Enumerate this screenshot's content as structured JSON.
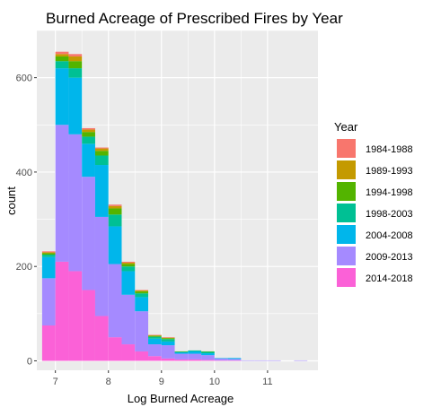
{
  "chart_data": {
    "type": "bar",
    "subtype": "stacked-histogram",
    "title": "Burned Acreage of Prescribed Fires by Year",
    "xlabel": "Log Burned Acreage",
    "ylabel": "count",
    "xlim": [
      6.65,
      11.95
    ],
    "ylim": [
      -20,
      700
    ],
    "x_ticks": [
      7,
      8,
      9,
      10,
      11
    ],
    "y_ticks": [
      0,
      200,
      400,
      600
    ],
    "bin_width": 0.25,
    "grid": true,
    "legend_title": "Year",
    "legend_position": "right",
    "series": [
      {
        "name": "1984-1988",
        "color": "#F8766D"
      },
      {
        "name": "1989-1993",
        "color": "#C49A00"
      },
      {
        "name": "1994-1998",
        "color": "#53B400"
      },
      {
        "name": "1998-2003",
        "color": "#00C094"
      },
      {
        "name": "2004-2008",
        "color": "#00B6EB"
      },
      {
        "name": "2009-2013",
        "color": "#A58AFF"
      },
      {
        "name": "2014-2018",
        "color": "#FB61D7"
      }
    ],
    "bins": [
      {
        "x": 6.875,
        "counts": {
          "2014-2018": 75,
          "2009-2013": 100,
          "2004-2008": 45,
          "1998-2003": 5,
          "1994-1998": 3,
          "1989-1993": 2,
          "1984-1988": 2
        }
      },
      {
        "x": 7.125,
        "counts": {
          "2014-2018": 210,
          "2009-2013": 290,
          "2004-2008": 120,
          "1998-2003": 15,
          "1994-1998": 10,
          "1989-1993": 5,
          "1984-1988": 5
        }
      },
      {
        "x": 7.375,
        "counts": {
          "2014-2018": 190,
          "2009-2013": 290,
          "2004-2008": 120,
          "1998-2003": 20,
          "1994-1998": 15,
          "1989-1993": 10,
          "1984-1988": 5
        }
      },
      {
        "x": 7.625,
        "counts": {
          "2014-2018": 150,
          "2009-2013": 240,
          "2004-2008": 70,
          "1998-2003": 15,
          "1994-1998": 10,
          "1989-1993": 5,
          "1984-1988": 3
        }
      },
      {
        "x": 7.875,
        "counts": {
          "2014-2018": 95,
          "2009-2013": 210,
          "2004-2008": 110,
          "1998-2003": 20,
          "1994-1998": 10,
          "1989-1993": 5,
          "1984-1988": 2
        }
      },
      {
        "x": 8.125,
        "counts": {
          "2014-2018": 50,
          "2009-2013": 155,
          "2004-2008": 80,
          "1998-2003": 25,
          "1994-1998": 13,
          "1989-1993": 5,
          "1984-1988": 3
        }
      },
      {
        "x": 8.375,
        "counts": {
          "2014-2018": 35,
          "2009-2013": 105,
          "2004-2008": 50,
          "1998-2003": 10,
          "1994-1998": 5,
          "1989-1993": 3,
          "1984-1988": 2
        }
      },
      {
        "x": 8.625,
        "counts": {
          "2014-2018": 20,
          "2009-2013": 85,
          "2004-2008": 30,
          "1998-2003": 8,
          "1994-1998": 4,
          "1989-1993": 2,
          "1984-1988": 1
        }
      },
      {
        "x": 8.875,
        "counts": {
          "2014-2018": 10,
          "2009-2013": 25,
          "2004-2008": 12,
          "1998-2003": 4,
          "1994-1998": 2,
          "1989-1993": 1,
          "1984-1988": 1
        }
      },
      {
        "x": 9.125,
        "counts": {
          "2014-2018": 5,
          "2009-2013": 28,
          "2004-2008": 8,
          "1998-2003": 5,
          "1994-1998": 2,
          "1989-1993": 1,
          "1984-1988": 1
        }
      },
      {
        "x": 9.375,
        "counts": {
          "2014-2018": 3,
          "2009-2013": 12,
          "2004-2008": 3,
          "1998-2003": 1,
          "1994-1998": 1,
          "1989-1993": 0,
          "1984-1988": 0
        }
      },
      {
        "x": 9.625,
        "counts": {
          "2014-2018": 3,
          "2009-2013": 12,
          "2004-2008": 5,
          "1998-2003": 2,
          "1994-1998": 0,
          "1989-1993": 0,
          "1984-1988": 0
        }
      },
      {
        "x": 9.875,
        "counts": {
          "2014-2018": 2,
          "2009-2013": 10,
          "2004-2008": 4,
          "1998-2003": 3,
          "1994-1998": 1,
          "1989-1993": 0,
          "1984-1988": 0
        }
      },
      {
        "x": 10.125,
        "counts": {
          "2014-2018": 1,
          "2009-2013": 4,
          "2004-2008": 1,
          "1998-2003": 0,
          "1994-1998": 0,
          "1989-1993": 0,
          "1984-1988": 0
        }
      },
      {
        "x": 10.375,
        "counts": {
          "2014-2018": 1,
          "2009-2013": 3,
          "2004-2008": 2,
          "1998-2003": 0,
          "1994-1998": 0,
          "1989-1993": 0,
          "1984-1988": 0
        }
      },
      {
        "x": 10.625,
        "counts": {
          "2014-2018": 0,
          "2009-2013": 1,
          "2004-2008": 0,
          "1998-2003": 0,
          "1994-1998": 0,
          "1989-1993": 0,
          "1984-1988": 0
        }
      },
      {
        "x": 10.875,
        "counts": {
          "2014-2018": 0,
          "2009-2013": 1,
          "2004-2008": 0,
          "1998-2003": 0,
          "1994-1998": 0,
          "1989-1993": 0,
          "1984-1988": 0
        }
      },
      {
        "x": 11.125,
        "counts": {
          "2014-2018": 0,
          "2009-2013": 1,
          "2004-2008": 0,
          "1998-2003": 0,
          "1994-1998": 0,
          "1989-1993": 0,
          "1984-1988": 0
        }
      },
      {
        "x": 11.375,
        "counts": {
          "2014-2018": 0,
          "2009-2013": 0,
          "2004-2008": 0,
          "1998-2003": 0,
          "1994-1998": 0,
          "1989-1993": 0,
          "1984-1988": 0
        }
      },
      {
        "x": 11.625,
        "counts": {
          "2014-2018": 0,
          "2009-2013": 1,
          "2004-2008": 0,
          "1998-2003": 0,
          "1994-1998": 0,
          "1989-1993": 0,
          "1984-1988": 0
        }
      }
    ]
  }
}
